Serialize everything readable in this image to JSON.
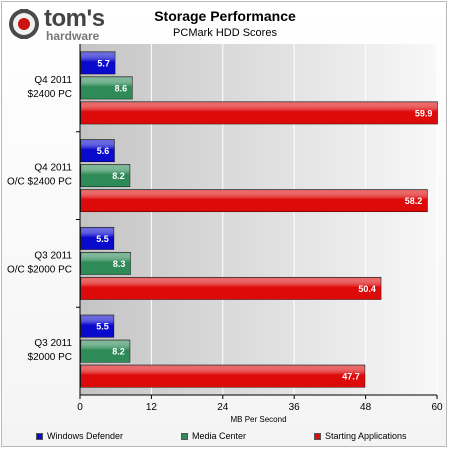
{
  "logo": {
    "main_text": "tom's",
    "sub_text": "hardware"
  },
  "chart_data": {
    "type": "bar",
    "orientation": "horizontal",
    "title": "Storage Performance",
    "subtitle": "PCMark HDD Scores",
    "xlabel": "MB Per Second",
    "ylabel": "",
    "xlim": [
      0,
      60
    ],
    "xticks": [
      0,
      12,
      24,
      36,
      48,
      60
    ],
    "grid": true,
    "legend_position": "bottom",
    "categories": [
      [
        "Q4 2011",
        "$2400 PC"
      ],
      [
        "Q4 2011",
        "O/C $2400 PC"
      ],
      [
        "Q3 2011",
        "O/C $2000 PC"
      ],
      [
        "Q3 2011",
        "$2000 PC"
      ]
    ],
    "series": [
      {
        "name": "Windows Defender",
        "color": "#0a0acc",
        "values": [
          5.7,
          5.6,
          5.5,
          5.5
        ]
      },
      {
        "name": "Media Center",
        "color": "#2e8b57",
        "values": [
          8.6,
          8.2,
          8.3,
          8.2
        ]
      },
      {
        "name": "Starting Applications",
        "color": "#dd0a0a",
        "values": [
          59.9,
          58.2,
          50.4,
          47.7
        ]
      }
    ]
  }
}
